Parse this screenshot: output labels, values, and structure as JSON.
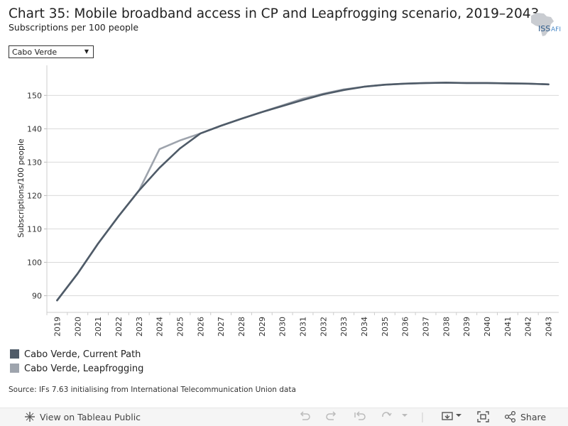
{
  "header": {
    "title": "Chart 35: Mobile broadband access in CP and Leapfrogging scenario, 2019–2043",
    "subtitle": "Subscriptions per 100 people",
    "logo_text": "ISS",
    "logo_text_2": "AFI"
  },
  "filter": {
    "selected": "Cabo Verde"
  },
  "chart_data": {
    "type": "line",
    "title": "Chart 35: Mobile broadband access in CP and Leapfrogging scenario, 2019–2043",
    "ylabel": "Subscriptions/100 people",
    "xlabel": "",
    "ylim": [
      85,
      159
    ],
    "yticks": [
      90,
      100,
      110,
      120,
      130,
      140,
      150
    ],
    "x": [
      2019,
      2020,
      2021,
      2022,
      2023,
      2024,
      2025,
      2026,
      2027,
      2028,
      2029,
      2030,
      2031,
      2032,
      2033,
      2034,
      2035,
      2036,
      2037,
      2038,
      2039,
      2040,
      2041,
      2042,
      2043
    ],
    "series": [
      {
        "name": "Cabo Verde, Leapfrogging",
        "color": "#9ea4ad",
        "values": [
          88.6,
          96.6,
          105.6,
          113.8,
          121.5,
          133.9,
          136.5,
          138.6,
          140.9,
          143.0,
          145.0,
          147.0,
          149.0,
          150.5,
          151.8,
          152.6,
          153.2,
          153.5,
          153.7,
          153.8,
          153.7,
          153.7,
          153.6,
          153.5,
          153.3
        ]
      },
      {
        "name": "Cabo Verde, Current Path",
        "color": "#4f5b68",
        "values": [
          88.6,
          96.6,
          105.6,
          113.8,
          121.5,
          128.3,
          134.1,
          138.6,
          140.9,
          143.0,
          145.0,
          146.8,
          148.6,
          150.3,
          151.6,
          152.6,
          153.2,
          153.5,
          153.7,
          153.8,
          153.7,
          153.7,
          153.6,
          153.5,
          153.3
        ]
      }
    ],
    "legend": [
      {
        "label": "Cabo Verde, Current Path",
        "color": "#4f5b68"
      },
      {
        "label": "Cabo Verde, Leapfrogging",
        "color": "#9ea4ad"
      }
    ],
    "grid": true
  },
  "source": "Source: IFs 7.63 initialising from International Telecommunication Union data",
  "toolbar": {
    "view_label": "View on Tableau Public",
    "share_label": "Share"
  }
}
